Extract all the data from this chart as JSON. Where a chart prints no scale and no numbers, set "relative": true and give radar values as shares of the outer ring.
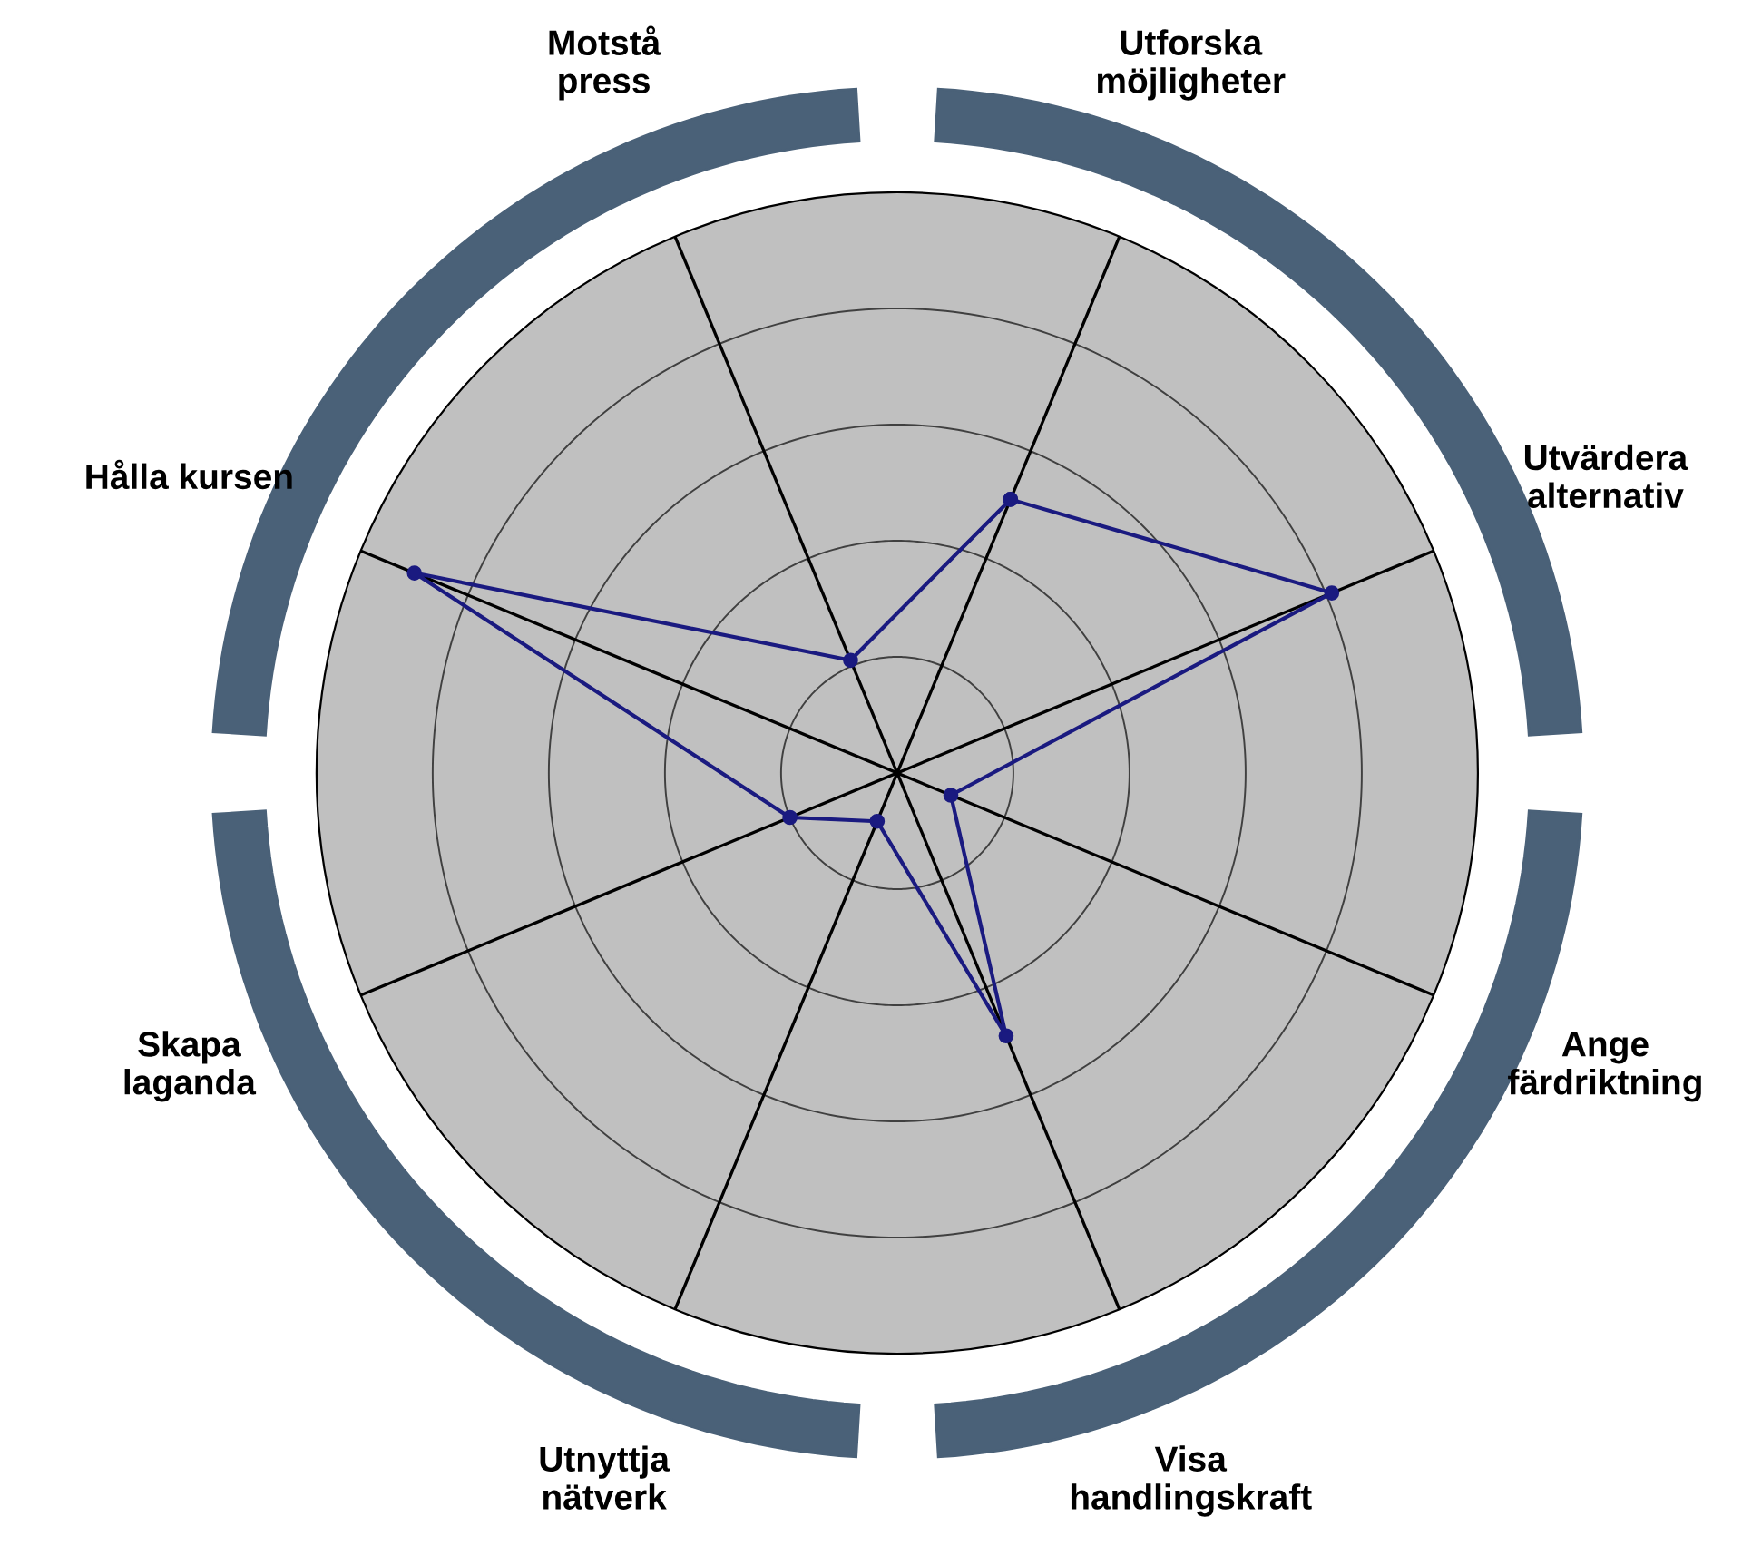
{
  "chart_data": {
    "type": "radar",
    "relative": true,
    "grid": true,
    "marker": "circle",
    "line_style": "solid",
    "categories": [
      "Utforska\nmöjligheter",
      "Utvärdera\nalternativ",
      "Ange\nfärdriktning",
      "Visa\nhandlingskraft",
      "Utnyttja\nnätverk",
      "Skapa\nlaganda",
      "Hålla kursen",
      "Motstå\npress"
    ],
    "series": [
      {
        "color": "#1a1a80",
        "values": [
          0.51,
          0.81,
          0.1,
          0.49,
          0.09,
          0.2,
          0.9,
          0.21
        ]
      }
    ]
  }
}
